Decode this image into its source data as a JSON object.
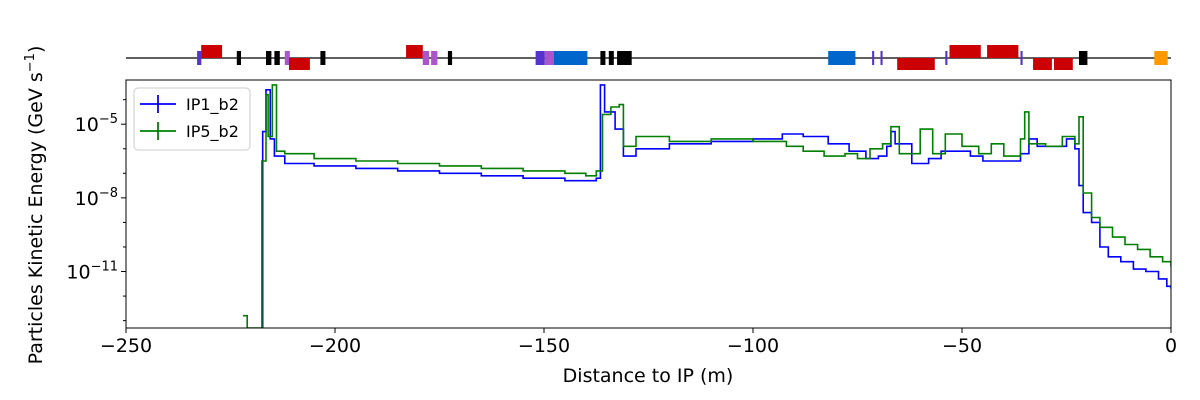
{
  "chart_data": {
    "type": "line",
    "title": "",
    "xlabel": "Distance to IP (m)",
    "ylabel": "Particles Kinetic Energy (GeV s",
    "ylabel_sup": "−1",
    "ylabel_close": ")",
    "xlim": [
      -250,
      0
    ],
    "ylim_log10": [
      -13.3,
      -3.2
    ],
    "y_scale": "log",
    "grid": false,
    "legend_position": "top-left",
    "x_ticks": [
      {
        "value": -250,
        "label": "−250"
      },
      {
        "value": -200,
        "label": "−200"
      },
      {
        "value": -150,
        "label": "−150"
      },
      {
        "value": -100,
        "label": "−100"
      },
      {
        "value": -50,
        "label": "−50"
      },
      {
        "value": 0,
        "label": "0"
      }
    ],
    "y_ticks": [
      {
        "log10": -5,
        "label": "10",
        "exp": "−5"
      },
      {
        "log10": -8,
        "label": "10",
        "exp": "−8"
      },
      {
        "log10": -11,
        "label": "10",
        "exp": "−11"
      }
    ],
    "series": [
      {
        "name": "IP1_b2",
        "color": "#0000ff",
        "points": [
          [
            -218,
            -99
          ],
          [
            -217.3,
            -5.3
          ],
          [
            -216.5,
            -3.6
          ],
          [
            -215.5,
            -5.6
          ],
          [
            -214.5,
            -6.3
          ],
          [
            -212,
            -6.6
          ],
          [
            -205,
            -6.7
          ],
          [
            -195,
            -6.8
          ],
          [
            -185,
            -6.9
          ],
          [
            -175,
            -7.0
          ],
          [
            -165,
            -7.1
          ],
          [
            -155,
            -7.2
          ],
          [
            -145,
            -7.3
          ],
          [
            -140,
            -7.3
          ],
          [
            -137.5,
            -7.2
          ],
          [
            -136.5,
            -3.4
          ],
          [
            -135.5,
            -4.5
          ],
          [
            -133,
            -5.2
          ],
          [
            -131,
            -6.3
          ],
          [
            -128,
            -6.0
          ],
          [
            -120,
            -5.8
          ],
          [
            -110,
            -5.7
          ],
          [
            -100,
            -5.6
          ],
          [
            -93,
            -5.4
          ],
          [
            -88,
            -5.5
          ],
          [
            -82,
            -5.8
          ],
          [
            -77,
            -6.1
          ],
          [
            -73,
            -6.4
          ],
          [
            -70,
            -6.3
          ],
          [
            -68,
            -5.9
          ],
          [
            -67,
            -5.3
          ],
          [
            -66,
            -5.8
          ],
          [
            -62,
            -6.6
          ],
          [
            -58,
            -6.4
          ],
          [
            -55,
            -6.1
          ],
          [
            -52,
            -6.1
          ],
          [
            -48,
            -6.3
          ],
          [
            -45,
            -6.5
          ],
          [
            -40,
            -6.5
          ],
          [
            -36,
            -6.2
          ],
          [
            -34,
            -5.6
          ],
          [
            -32,
            -5.9
          ],
          [
            -28,
            -5.9
          ],
          [
            -25,
            -5.6
          ],
          [
            -23,
            -6.0
          ],
          [
            -22,
            -7.5
          ],
          [
            -21,
            -8.6
          ],
          [
            -19,
            -9.0
          ],
          [
            -17,
            -10.0
          ],
          [
            -15,
            -10.4
          ],
          [
            -12,
            -10.6
          ],
          [
            -9,
            -10.9
          ],
          [
            -6,
            -11.0
          ],
          [
            -3,
            -11.3
          ],
          [
            -1,
            -11.6
          ],
          [
            0,
            -11.7
          ]
        ]
      },
      {
        "name": "IP5_b2",
        "color": "#008000",
        "points": [
          [
            -222,
            -12.8
          ],
          [
            -221,
            -13.3
          ],
          [
            -218,
            -13.3
          ],
          [
            -217.5,
            -6.5
          ],
          [
            -216.5,
            -3.8
          ],
          [
            -216,
            -5.5
          ],
          [
            -215,
            -3.4
          ],
          [
            -214,
            -6.1
          ],
          [
            -212,
            -6.2
          ],
          [
            -205,
            -6.4
          ],
          [
            -195,
            -6.5
          ],
          [
            -185,
            -6.6
          ],
          [
            -175,
            -6.7
          ],
          [
            -165,
            -6.8
          ],
          [
            -155,
            -6.9
          ],
          [
            -145,
            -7.0
          ],
          [
            -140,
            -7.1
          ],
          [
            -137.5,
            -6.9
          ],
          [
            -136,
            -4.6
          ],
          [
            -134,
            -4.3
          ],
          [
            -132,
            -4.2
          ],
          [
            -131,
            -5.9
          ],
          [
            -128,
            -5.5
          ],
          [
            -120,
            -5.7
          ],
          [
            -110,
            -5.6
          ],
          [
            -100,
            -5.7
          ],
          [
            -92,
            -5.9
          ],
          [
            -88,
            -6.1
          ],
          [
            -83,
            -6.3
          ],
          [
            -78,
            -6.2
          ],
          [
            -75,
            -6.4
          ],
          [
            -72,
            -6.0
          ],
          [
            -69,
            -5.8
          ],
          [
            -67,
            -5.1
          ],
          [
            -65,
            -6.2
          ],
          [
            -60,
            -5.2
          ],
          [
            -57,
            -6.2
          ],
          [
            -54,
            -5.4
          ],
          [
            -50,
            -5.9
          ],
          [
            -46,
            -6.2
          ],
          [
            -43,
            -5.8
          ],
          [
            -40,
            -6.3
          ],
          [
            -36,
            -5.6
          ],
          [
            -35,
            -4.5
          ],
          [
            -34,
            -5.8
          ],
          [
            -30,
            -5.9
          ],
          [
            -26,
            -5.5
          ],
          [
            -23,
            -5.8
          ],
          [
            -22,
            -4.7
          ],
          [
            -21,
            -7.8
          ],
          [
            -19,
            -8.8
          ],
          [
            -17,
            -9.2
          ],
          [
            -14,
            -9.6
          ],
          [
            -11,
            -9.9
          ],
          [
            -8,
            -10.1
          ],
          [
            -5,
            -10.4
          ],
          [
            -2,
            -10.6
          ],
          [
            0,
            -10.8
          ]
        ]
      }
    ],
    "element_strip": {
      "blocks": [
        {
          "x": -233,
          "w": 1,
          "color": "#5533cc",
          "pos": "cross"
        },
        {
          "x": -232,
          "w": 5,
          "color": "#cc0000",
          "pos": "up"
        },
        {
          "x": -223.5,
          "w": 1,
          "color": "#000000",
          "pos": "cross"
        },
        {
          "x": -216.5,
          "w": 1.3,
          "color": "#000000",
          "pos": "cross"
        },
        {
          "x": -214.5,
          "w": 1.3,
          "color": "#000000",
          "pos": "cross"
        },
        {
          "x": -212,
          "w": 1.2,
          "color": "#aa55cc",
          "pos": "cross"
        },
        {
          "x": -211,
          "w": 5,
          "color": "#cc0000",
          "pos": "down"
        },
        {
          "x": -203.5,
          "w": 1.2,
          "color": "#000000",
          "pos": "cross"
        },
        {
          "x": -183,
          "w": 4,
          "color": "#cc0000",
          "pos": "up"
        },
        {
          "x": -179,
          "w": 1.5,
          "color": "#aa55cc",
          "pos": "cross"
        },
        {
          "x": -177,
          "w": 1.5,
          "color": "#aa55cc",
          "pos": "cross"
        },
        {
          "x": -173,
          "w": 1,
          "color": "#000000",
          "pos": "cross"
        },
        {
          "x": -152,
          "w": 2.2,
          "color": "#5533cc",
          "pos": "cross"
        },
        {
          "x": -149.8,
          "w": 2.2,
          "color": "#aa55cc",
          "pos": "cross"
        },
        {
          "x": -147.6,
          "w": 8,
          "color": "#0066cc",
          "pos": "cross"
        },
        {
          "x": -136.5,
          "w": 1.2,
          "color": "#000000",
          "pos": "cross"
        },
        {
          "x": -134.5,
          "w": 1.2,
          "color": "#000000",
          "pos": "cross"
        },
        {
          "x": -132.5,
          "w": 3.5,
          "color": "#000000",
          "pos": "cross"
        },
        {
          "x": -82,
          "w": 6.5,
          "color": "#0066cc",
          "pos": "cross"
        },
        {
          "x": -71.5,
          "w": 0.5,
          "color": "#5533cc",
          "pos": "cross"
        },
        {
          "x": -69.5,
          "w": 0.5,
          "color": "#5533cc",
          "pos": "cross"
        },
        {
          "x": -65.5,
          "w": 4.5,
          "color": "#cc0000",
          "pos": "down"
        },
        {
          "x": -61,
          "w": 4.5,
          "color": "#cc0000",
          "pos": "down"
        },
        {
          "x": -54,
          "w": 0.5,
          "color": "#5533cc",
          "pos": "cross"
        },
        {
          "x": -53,
          "w": 7.5,
          "color": "#cc0000",
          "pos": "up"
        },
        {
          "x": -44,
          "w": 7.5,
          "color": "#cc0000",
          "pos": "up"
        },
        {
          "x": -36,
          "w": 0.5,
          "color": "#5533cc",
          "pos": "cross"
        },
        {
          "x": -33,
          "w": 4.5,
          "color": "#cc0000",
          "pos": "down"
        },
        {
          "x": -28,
          "w": 4.5,
          "color": "#cc0000",
          "pos": "down"
        },
        {
          "x": -22,
          "w": 2,
          "color": "#000000",
          "pos": "cross"
        },
        {
          "x": -4,
          "w": 3.2,
          "color": "#ff9900",
          "pos": "cross"
        }
      ]
    }
  }
}
